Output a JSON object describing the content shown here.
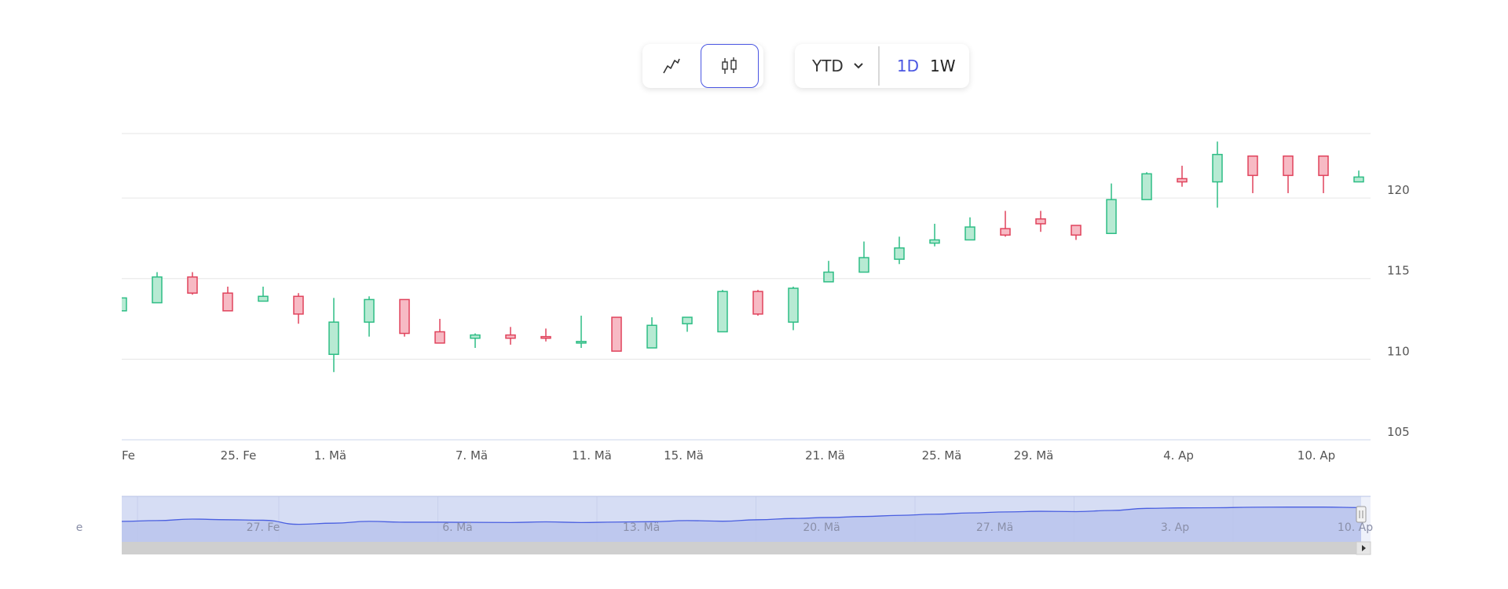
{
  "toolbar": {
    "chart_types": [
      {
        "name": "line",
        "icon": "line-chart-icon",
        "active": false
      },
      {
        "name": "candlestick",
        "icon": "candlestick-icon",
        "active": true
      }
    ],
    "range_label": "YTD",
    "periods": [
      {
        "label": "1D",
        "active": true
      },
      {
        "label": "1W",
        "active": false
      }
    ]
  },
  "colors": {
    "up": "#2ebd85",
    "up_fill": "#b7ead3",
    "down": "#e0435c",
    "down_fill": "#f7bac4",
    "accent": "#4a56e2",
    "navigator_fill": "#c3cbee",
    "navigator_line": "#4a5fe0",
    "grid": "#e6e6e6"
  },
  "chart_data": {
    "type": "candlestick",
    "ylim": [
      105,
      124
    ],
    "y_ticks": [
      105,
      110,
      115,
      120
    ],
    "x_ticks": [
      {
        "label": "Fe",
        "x": 0
      },
      {
        "label": "25. Fe",
        "x": 3.3
      },
      {
        "label": "1. Mä",
        "x": 5.9
      },
      {
        "label": "7. Mä",
        "x": 9.9
      },
      {
        "label": "11. Mä",
        "x": 13.3
      },
      {
        "label": "15. Mä",
        "x": 15.9
      },
      {
        "label": "21. Mä",
        "x": 19.9
      },
      {
        "label": "25. Mä",
        "x": 23.2
      },
      {
        "label": "29. Mä",
        "x": 25.8
      },
      {
        "label": "4. Ap",
        "x": 29.9
      },
      {
        "label": "10. Ap",
        "x": 33.8
      }
    ],
    "candles": [
      {
        "x": 0,
        "open": 113.0,
        "high": 113.8,
        "low": 113.0,
        "close": 113.8
      },
      {
        "x": 1,
        "open": 113.5,
        "high": 115.4,
        "low": 113.5,
        "close": 115.1
      },
      {
        "x": 2,
        "open": 115.1,
        "high": 115.4,
        "low": 114.0,
        "close": 114.1
      },
      {
        "x": 3,
        "open": 114.1,
        "high": 114.5,
        "low": 113.0,
        "close": 113.0
      },
      {
        "x": 4,
        "open": 113.6,
        "high": 114.5,
        "low": 113.6,
        "close": 113.9
      },
      {
        "x": 5,
        "open": 113.9,
        "high": 114.1,
        "low": 112.2,
        "close": 112.8
      },
      {
        "x": 6,
        "open": 110.3,
        "high": 113.8,
        "low": 109.2,
        "close": 112.3
      },
      {
        "x": 7,
        "open": 112.3,
        "high": 113.9,
        "low": 111.4,
        "close": 113.7
      },
      {
        "x": 8,
        "open": 113.7,
        "high": 113.7,
        "low": 111.4,
        "close": 111.6
      },
      {
        "x": 9,
        "open": 111.7,
        "high": 112.5,
        "low": 111.0,
        "close": 111.0
      },
      {
        "x": 10,
        "open": 111.3,
        "high": 111.6,
        "low": 110.7,
        "close": 111.5
      },
      {
        "x": 11,
        "open": 111.5,
        "high": 112.0,
        "low": 110.9,
        "close": 111.3
      },
      {
        "x": 12,
        "open": 111.4,
        "high": 111.9,
        "low": 111.1,
        "close": 111.3
      },
      {
        "x": 13,
        "open": 111.0,
        "high": 112.7,
        "low": 110.7,
        "close": 111.1
      },
      {
        "x": 14,
        "open": 112.6,
        "high": 112.6,
        "low": 110.5,
        "close": 110.5
      },
      {
        "x": 15,
        "open": 110.7,
        "high": 112.6,
        "low": 110.7,
        "close": 112.1
      },
      {
        "x": 16,
        "open": 112.2,
        "high": 112.6,
        "low": 111.7,
        "close": 112.6
      },
      {
        "x": 17,
        "open": 111.7,
        "high": 114.3,
        "low": 111.7,
        "close": 114.2
      },
      {
        "x": 18,
        "open": 114.2,
        "high": 114.3,
        "low": 112.7,
        "close": 112.8
      },
      {
        "x": 19,
        "open": 112.3,
        "high": 114.5,
        "low": 111.8,
        "close": 114.4
      },
      {
        "x": 20,
        "open": 114.8,
        "high": 116.1,
        "low": 114.8,
        "close": 115.4
      },
      {
        "x": 21,
        "open": 115.4,
        "high": 117.3,
        "low": 115.4,
        "close": 116.3
      },
      {
        "x": 22,
        "open": 116.2,
        "high": 117.6,
        "low": 115.9,
        "close": 116.9
      },
      {
        "x": 23,
        "open": 117.2,
        "high": 118.4,
        "low": 117.0,
        "close": 117.4
      },
      {
        "x": 24,
        "open": 117.4,
        "high": 118.8,
        "low": 117.4,
        "close": 118.2
      },
      {
        "x": 25,
        "open": 118.1,
        "high": 119.2,
        "low": 117.6,
        "close": 117.7
      },
      {
        "x": 26,
        "open": 118.7,
        "high": 119.2,
        "low": 117.9,
        "close": 118.4
      },
      {
        "x": 27,
        "open": 118.3,
        "high": 118.3,
        "low": 117.4,
        "close": 117.7
      },
      {
        "x": 28,
        "open": 117.8,
        "high": 120.9,
        "low": 117.8,
        "close": 119.9
      },
      {
        "x": 29,
        "open": 119.9,
        "high": 121.6,
        "low": 119.9,
        "close": 121.5
      },
      {
        "x": 30,
        "open": 121.2,
        "high": 122.0,
        "low": 120.7,
        "close": 121.0
      },
      {
        "x": 31,
        "open": 121.0,
        "high": 123.5,
        "low": 119.4,
        "close": 122.7
      },
      {
        "x": 32,
        "open": 122.6,
        "high": 122.6,
        "low": 120.3,
        "close": 121.4
      },
      {
        "x": 33,
        "open": 122.6,
        "high": 122.6,
        "low": 120.3,
        "close": 121.4
      },
      {
        "x": 34,
        "open": 122.6,
        "high": 122.6,
        "low": 120.3,
        "close": 121.4
      },
      {
        "x": 35,
        "open": 121.0,
        "high": 121.7,
        "low": 121.0,
        "close": 121.3
      }
    ],
    "navigator": {
      "labels": [
        {
          "label": "e",
          "x": -1.2
        },
        {
          "label": "27. Fe",
          "x": 4.0
        },
        {
          "label": "6. Mä",
          "x": 9.5
        },
        {
          "label": "13. Mä",
          "x": 14.7
        },
        {
          "label": "20. Mä",
          "x": 19.8
        },
        {
          "label": "27. Mä",
          "x": 24.7
        },
        {
          "label": "3. Ap",
          "x": 29.8
        },
        {
          "label": "10. Ap",
          "x": 34.9
        }
      ],
      "series": [
        112.6,
        113.1,
        114.0,
        113.6,
        113.3,
        110.8,
        111.5,
        112.6,
        112.1,
        112.1,
        112.0,
        111.9,
        112.3,
        111.9,
        112.2,
        112.4,
        113.1,
        112.7,
        113.6,
        114.4,
        115.0,
        115.6,
        116.3,
        117.0,
        117.8,
        118.4,
        118.8,
        118.6,
        119.3,
        120.6,
        120.9,
        121.0,
        121.3,
        121.4,
        121.4,
        121.1
      ],
      "ylim": [
        100,
        128
      ]
    }
  }
}
